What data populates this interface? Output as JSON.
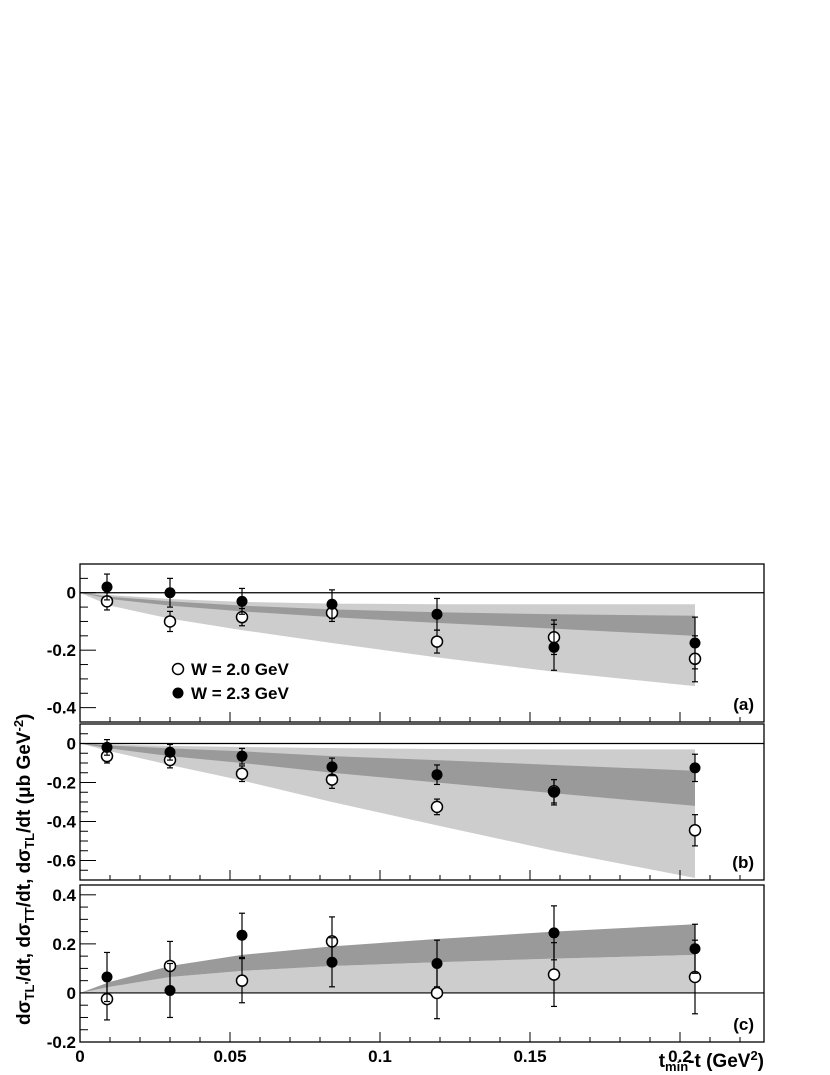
{
  "chart_data": {
    "type": "scatter",
    "xlabel_parts": {
      "base": "t",
      "sub": "min",
      "rest": "-t (GeV",
      "sup": "2",
      "end": ")"
    },
    "ylabel_parts": {
      "p1": "dσ",
      "p1_sub": "TL'",
      "p1_end": "/dt, dσ",
      "p2_sub": "TT",
      "p2_mid": "/dt, dσ",
      "p3_sub": "TL",
      "p3_mid": "/dt  (μb GeV",
      "p3_sup": "-2",
      "p3_end": ")"
    },
    "xlim": [
      0,
      0.228
    ],
    "x_ticks": [
      {
        "value": 0,
        "label": "0"
      },
      {
        "value": 0.05,
        "label": "0.05"
      },
      {
        "value": 0.1,
        "label": "0.1"
      },
      {
        "value": 0.15,
        "label": "0.15"
      },
      {
        "value": 0.2,
        "label": "0.2"
      }
    ],
    "legend": [
      {
        "label": "W = 2.0 GeV",
        "marker": "open-circle"
      },
      {
        "label": "W = 2.3 GeV",
        "marker": "filled-circle"
      }
    ],
    "colors": {
      "band_light": "#cdcdcd",
      "band_dark": "#9a9a9a",
      "marker": "#000000"
    },
    "panels": [
      {
        "tag": "(a)",
        "ylim": [
          -0.45,
          0.1
        ],
        "y_ticks": [
          {
            "value": 0,
            "label": "0"
          },
          {
            "value": -0.2,
            "label": "-0.2"
          },
          {
            "value": -0.4,
            "label": "-0.4"
          }
        ],
        "band_light": {
          "x": [
            0,
            0.01,
            0.03,
            0.054,
            0.084,
            0.119,
            0.158,
            0.205
          ],
          "upper": [
            0,
            -0.008,
            -0.022,
            -0.032,
            -0.038,
            -0.04,
            -0.04,
            -0.04
          ],
          "lower": [
            0,
            -0.045,
            -0.09,
            -0.13,
            -0.175,
            -0.225,
            -0.275,
            -0.325
          ]
        },
        "band_dark": {
          "x": [
            0,
            0.01,
            0.03,
            0.054,
            0.084,
            0.119,
            0.158,
            0.205
          ],
          "upper": [
            0,
            -0.014,
            -0.03,
            -0.045,
            -0.058,
            -0.068,
            -0.075,
            -0.08
          ],
          "lower": [
            0,
            -0.022,
            -0.045,
            -0.065,
            -0.085,
            -0.105,
            -0.125,
            -0.15
          ]
        },
        "series": [
          {
            "marker": "open-circle",
            "x": [
              0.009,
              0.03,
              0.054,
              0.084,
              0.119,
              0.158,
              0.205
            ],
            "y": [
              -0.03,
              -0.1,
              -0.085,
              -0.07,
              -0.17,
              -0.155,
              -0.23
            ],
            "err": [
              0.03,
              0.035,
              0.03,
              0.03,
              0.04,
              0.06,
              0.08
            ]
          },
          {
            "marker": "filled-circle",
            "x": [
              0.009,
              0.03,
              0.054,
              0.084,
              0.119,
              0.158,
              0.205
            ],
            "y": [
              0.02,
              0.0,
              -0.03,
              -0.04,
              -0.075,
              -0.19,
              -0.175
            ],
            "err": [
              0.045,
              0.05,
              0.045,
              0.05,
              0.055,
              0.08,
              0.09
            ]
          }
        ]
      },
      {
        "tag": "(b)",
        "ylim": [
          -0.7,
          0.1
        ],
        "y_ticks": [
          {
            "value": 0,
            "label": "0"
          },
          {
            "value": -0.2,
            "label": "-0.2"
          },
          {
            "value": -0.4,
            "label": "-0.4"
          },
          {
            "value": -0.6,
            "label": "-0.6"
          }
        ],
        "band_light": {
          "x": [
            0,
            0.01,
            0.03,
            0.054,
            0.084,
            0.119,
            0.158,
            0.205
          ],
          "upper": [
            0,
            -0.005,
            -0.012,
            -0.018,
            -0.024,
            -0.028,
            -0.03,
            -0.03
          ],
          "lower": [
            0,
            -0.04,
            -0.11,
            -0.19,
            -0.3,
            -0.42,
            -0.55,
            -0.69
          ]
        },
        "band_dark": {
          "x": [
            0,
            0.01,
            0.03,
            0.054,
            0.084,
            0.119,
            0.158,
            0.205
          ],
          "upper": [
            0,
            -0.01,
            -0.025,
            -0.04,
            -0.065,
            -0.085,
            -0.11,
            -0.14
          ],
          "lower": [
            0,
            -0.025,
            -0.065,
            -0.1,
            -0.15,
            -0.2,
            -0.255,
            -0.32
          ]
        },
        "series": [
          {
            "marker": "open-circle",
            "x": [
              0.009,
              0.03,
              0.054,
              0.084,
              0.119,
              0.158,
              0.205
            ],
            "y": [
              -0.065,
              -0.085,
              -0.155,
              -0.185,
              -0.325,
              -0.245,
              -0.445
            ],
            "err": [
              0.035,
              0.04,
              0.04,
              0.045,
              0.04,
              0.06,
              0.08
            ]
          },
          {
            "marker": "filled-circle",
            "x": [
              0.009,
              0.03,
              0.054,
              0.084,
              0.119,
              0.158,
              0.205
            ],
            "y": [
              -0.02,
              -0.045,
              -0.065,
              -0.12,
              -0.16,
              -0.25,
              -0.125
            ],
            "err": [
              0.04,
              0.04,
              0.04,
              0.045,
              0.05,
              0.065,
              0.07
            ]
          }
        ]
      },
      {
        "tag": "(c)",
        "ylim": [
          -0.2,
          0.44
        ],
        "y_ticks": [
          {
            "value": 0.4,
            "label": "0.4"
          },
          {
            "value": 0.2,
            "label": "0.2"
          },
          {
            "value": 0,
            "label": "0"
          },
          {
            "value": -0.2,
            "label": "-0.2"
          }
        ],
        "band_light": {
          "x": [
            0,
            0.01,
            0.03,
            0.054,
            0.084,
            0.119,
            0.158,
            0.205
          ],
          "upper": [
            0,
            0.025,
            0.065,
            0.09,
            0.11,
            0.125,
            0.14,
            0.155
          ],
          "lower": [
            0,
            0,
            0,
            0,
            0,
            0,
            0,
            0
          ]
        },
        "band_dark": {
          "x": [
            0,
            0.01,
            0.03,
            0.054,
            0.084,
            0.119,
            0.158,
            0.205
          ],
          "upper": [
            0,
            0.045,
            0.11,
            0.155,
            0.19,
            0.22,
            0.25,
            0.28
          ],
          "lower": [
            0,
            0.025,
            0.065,
            0.09,
            0.11,
            0.125,
            0.14,
            0.155
          ]
        },
        "series": [
          {
            "marker": "open-circle",
            "x": [
              0.009,
              0.03,
              0.054,
              0.084,
              0.119,
              0.158,
              0.205
            ],
            "y": [
              -0.025,
              0.11,
              0.05,
              0.21,
              0.0,
              0.075,
              0.065
            ],
            "err": [
              0.085,
              0.1,
              0.09,
              0.1,
              0.105,
              0.13,
              0.15
            ]
          },
          {
            "marker": "filled-circle",
            "x": [
              0.009,
              0.03,
              0.054,
              0.084,
              0.119,
              0.158,
              0.205
            ],
            "y": [
              0.065,
              0.01,
              0.235,
              0.125,
              0.12,
              0.245,
              0.18
            ],
            "err": [
              0.1,
              0.11,
              0.09,
              0.1,
              0.095,
              0.11,
              0.1
            ]
          }
        ]
      }
    ]
  }
}
